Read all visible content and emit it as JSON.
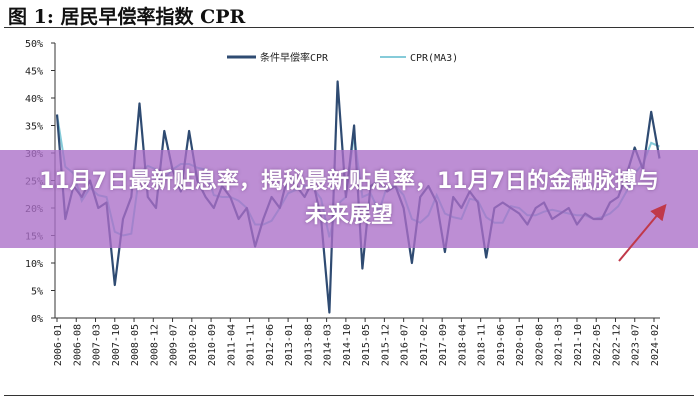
{
  "chart_data": {
    "type": "line",
    "title": "图 1: 居民早偿率指数 CPR",
    "xlabel": "",
    "ylabel": "",
    "ylim": [
      0,
      50
    ],
    "y_ticks": [
      "0%",
      "5%",
      "10%",
      "15%",
      "20%",
      "25%",
      "30%",
      "35%",
      "40%",
      "45%",
      "50%"
    ],
    "x_ticks": [
      "2006-01",
      "2006-08",
      "2007-03",
      "2007-10",
      "2008-05",
      "2008-12",
      "2009-07",
      "2010-02",
      "2010-09",
      "2011-04",
      "2011-11",
      "2012-06",
      "2013-01",
      "2013-08",
      "2014-03",
      "2014-10",
      "2015-05",
      "2015-12",
      "2016-07",
      "2017-02",
      "2017-09",
      "2018-04",
      "2018-11",
      "2019-06",
      "2020-01",
      "2020-08",
      "2021-03",
      "2021-10",
      "2022-05",
      "2022-12",
      "2023-07",
      "2024-02"
    ],
    "grid": false,
    "legend_position": "top-center",
    "x": [
      "2006-01",
      "2006-04",
      "2006-07",
      "2006-10",
      "2007-01",
      "2007-04",
      "2007-07",
      "2007-10",
      "2008-01",
      "2008-04",
      "2008-07",
      "2008-10",
      "2009-01",
      "2009-04",
      "2009-07",
      "2009-10",
      "2010-01",
      "2010-04",
      "2010-07",
      "2010-10",
      "2011-01",
      "2011-04",
      "2011-07",
      "2011-10",
      "2012-01",
      "2012-04",
      "2012-07",
      "2012-10",
      "2013-01",
      "2013-04",
      "2013-07",
      "2013-10",
      "2014-01",
      "2014-04",
      "2014-07",
      "2014-10",
      "2015-01",
      "2015-04",
      "2015-07",
      "2015-10",
      "2016-01",
      "2016-04",
      "2016-07",
      "2016-10",
      "2017-01",
      "2017-04",
      "2017-07",
      "2017-10",
      "2018-01",
      "2018-04",
      "2018-07",
      "2018-10",
      "2019-01",
      "2019-04",
      "2019-07",
      "2019-10",
      "2020-01",
      "2020-04",
      "2020-07",
      "2020-10",
      "2021-01",
      "2021-04",
      "2021-07",
      "2021-10",
      "2022-01",
      "2022-04",
      "2022-07",
      "2022-10",
      "2023-01",
      "2023-04",
      "2023-07",
      "2023-10",
      "2024-01",
      "2024-04"
    ],
    "series": [
      {
        "name": "条件早偿率CPR",
        "color": "#2f4b72",
        "values": [
          37,
          18,
          24,
          22,
          25,
          20,
          21,
          6,
          18,
          22,
          39,
          22,
          20,
          34,
          27,
          23,
          34,
          25,
          22,
          20,
          24,
          22,
          18,
          20,
          13,
          18,
          22,
          20,
          26,
          24,
          22,
          25,
          18,
          1,
          43,
          22,
          35,
          9,
          24,
          25,
          23,
          24,
          20,
          10,
          22,
          24,
          21,
          12,
          22,
          20,
          23,
          21,
          11,
          20,
          21,
          20,
          19,
          17,
          20,
          21,
          18,
          19,
          20,
          17,
          19,
          18,
          18,
          21,
          22,
          26,
          31,
          27,
          37.5,
          29
        ]
      },
      {
        "name": "CPR(MA3)",
        "color": "#86cbd9",
        "moving_average_window": 3
      }
    ]
  },
  "banner": {
    "text": "11月7日最新贴息率，揭秘最新贴息率，11月7日的金融脉搏与未来展望",
    "color": "#aa6ec8"
  },
  "arrow_color": "#c0394a"
}
